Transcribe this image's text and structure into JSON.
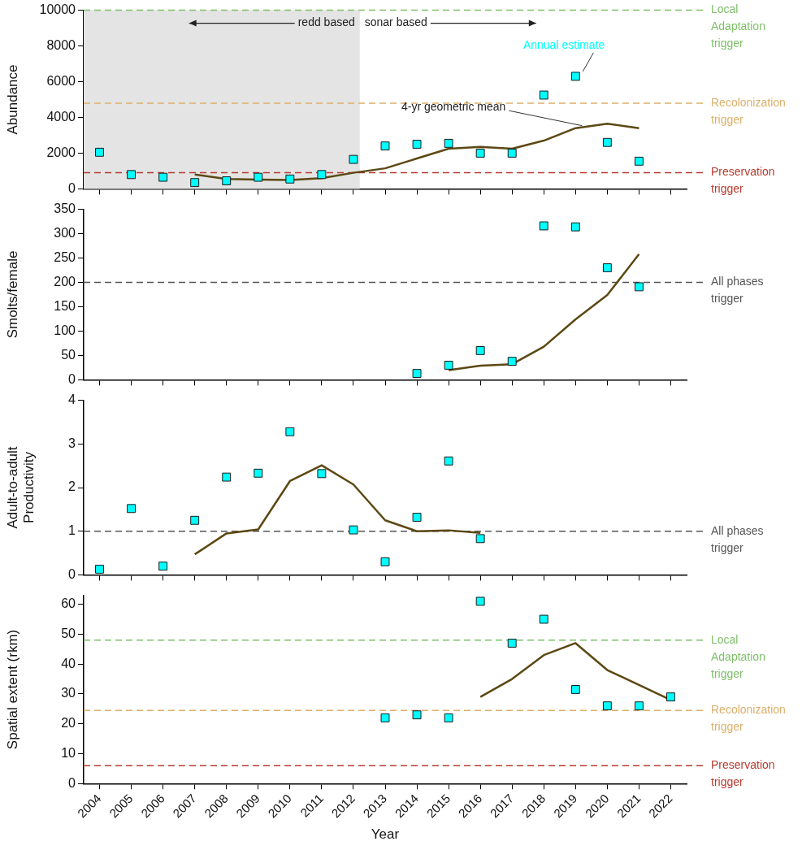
{
  "chart_data": [
    {
      "type": "scatter",
      "ylabel": "Abundance",
      "categories": [
        "2004",
        "2005",
        "2006",
        "2007",
        "2008",
        "2009",
        "2010",
        "2011",
        "2012",
        "2013",
        "2014",
        "2015",
        "2016",
        "2017",
        "2018",
        "2019",
        "2020",
        "2021",
        "2022"
      ],
      "series": [
        {
          "name": "Annual estimate",
          "marker": "square",
          "color": "#00ffff",
          "values": [
            2050,
            800,
            650,
            350,
            450,
            650,
            550,
            800,
            1650,
            2400,
            2500,
            2550,
            2000,
            2000,
            5250,
            6300,
            2600,
            1550,
            null
          ]
        },
        {
          "name": "4-yr geometric mean",
          "type": "line",
          "marker": "none",
          "color": "#5c4813",
          "values": [
            null,
            null,
            null,
            800,
            550,
            520,
            500,
            600,
            900,
            1150,
            1700,
            2250,
            2350,
            2250,
            2700,
            3400,
            3650,
            3400,
            null
          ]
        }
      ],
      "ylim": [
        0,
        10000
      ],
      "yticks": [
        0,
        2000,
        4000,
        6000,
        8000,
        10000
      ],
      "tick_labels": "y",
      "ref_lines": [
        {
          "axis": "y",
          "value": 10000,
          "label": "Local Adaptation trigger",
          "color": "#7fbf6a",
          "line_style": "dashed"
        },
        {
          "axis": "y",
          "value": 4800,
          "label": "Recolonization trigger",
          "color": "#dcb06a",
          "line_style": "dashed"
        },
        {
          "axis": "y",
          "value": 900,
          "label": "Preservation trigger",
          "color": "#b83a2e",
          "line_style": "dashed"
        }
      ],
      "bands": [
        {
          "axis": "x",
          "from": "2004",
          "to": "2012",
          "color": "#e4e4e4"
        }
      ],
      "annotations": [
        "redd based",
        "sonar based"
      ]
    },
    {
      "type": "scatter",
      "ylabel": "Smolts/female",
      "categories": [
        "2004",
        "2005",
        "2006",
        "2007",
        "2008",
        "2009",
        "2010",
        "2011",
        "2012",
        "2013",
        "2014",
        "2015",
        "2016",
        "2017",
        "2018",
        "2019",
        "2020",
        "2021",
        "2022"
      ],
      "series": [
        {
          "marker": "square",
          "color": "#00ffff",
          "values": [
            null,
            null,
            null,
            null,
            null,
            null,
            null,
            null,
            null,
            null,
            13,
            30,
            60,
            38,
            316,
            314,
            230,
            191,
            null
          ]
        },
        {
          "type": "line",
          "marker": "none",
          "color": "#5c4813",
          "values": [
            null,
            null,
            null,
            null,
            null,
            null,
            null,
            null,
            null,
            null,
            null,
            20,
            29,
            32,
            68,
            124,
            174,
            258,
            null
          ]
        }
      ],
      "ylim": [
        0,
        350
      ],
      "yticks": [
        0,
        50,
        100,
        150,
        200,
        250,
        300,
        350
      ],
      "tick_labels": "y",
      "ref_lines": [
        {
          "axis": "y",
          "value": 200,
          "label": "All phases trigger",
          "color": "#555555",
          "line_style": "dashed"
        }
      ]
    },
    {
      "type": "scatter",
      "ylabel": "Adult-to-adult Productivity",
      "categories": [
        "2004",
        "2005",
        "2006",
        "2007",
        "2008",
        "2009",
        "2010",
        "2011",
        "2012",
        "2013",
        "2014",
        "2015",
        "2016",
        "2017",
        "2018",
        "2019",
        "2020",
        "2021",
        "2022"
      ],
      "series": [
        {
          "marker": "square",
          "color": "#00ffff",
          "values": [
            0.13,
            1.52,
            0.2,
            1.25,
            2.24,
            2.33,
            3.28,
            2.32,
            1.03,
            0.3,
            1.32,
            2.61,
            0.83,
            null,
            null,
            null,
            null,
            null,
            null
          ]
        },
        {
          "type": "line",
          "marker": "none",
          "color": "#5c4813",
          "values": [
            null,
            null,
            null,
            0.47,
            0.95,
            1.04,
            2.15,
            2.51,
            2.07,
            1.25,
            1.0,
            1.02,
            0.96,
            null,
            null,
            null,
            null,
            null,
            null
          ]
        }
      ],
      "ylim": [
        0,
        4
      ],
      "yticks": [
        0,
        1,
        2,
        3,
        4
      ],
      "tick_labels": "y",
      "ref_lines": [
        {
          "axis": "y",
          "value": 1,
          "label": "All phases trigger",
          "color": "#555555",
          "line_style": "dashed"
        }
      ]
    },
    {
      "type": "scatter",
      "xlabel": "Year",
      "ylabel": "Spatial extent (rkm)",
      "categories": [
        "2004",
        "2005",
        "2006",
        "2007",
        "2008",
        "2009",
        "2010",
        "2011",
        "2012",
        "2013",
        "2014",
        "2015",
        "2016",
        "2017",
        "2018",
        "2019",
        "2020",
        "2021",
        "2022"
      ],
      "series": [
        {
          "marker": "square",
          "color": "#00ffff",
          "values": [
            null,
            null,
            null,
            null,
            null,
            null,
            null,
            null,
            null,
            22,
            23,
            22,
            61,
            47,
            55,
            31.5,
            26,
            26,
            29
          ]
        },
        {
          "type": "line",
          "marker": "none",
          "color": "#5c4813",
          "values": [
            null,
            null,
            null,
            null,
            null,
            null,
            null,
            null,
            null,
            null,
            null,
            null,
            29,
            35,
            43,
            47,
            38,
            33,
            28
          ]
        }
      ],
      "ylim": [
        0,
        63
      ],
      "yticks": [
        0,
        10,
        20,
        30,
        40,
        50,
        60
      ],
      "ref_lines": [
        {
          "axis": "y",
          "value": 48,
          "label": "Local Adaptation trigger",
          "color": "#7fbf6a",
          "line_style": "dashed"
        },
        {
          "axis": "y",
          "value": 24.5,
          "label": "Recolonization trigger",
          "color": "#dcb06a",
          "line_style": "dashed"
        },
        {
          "axis": "y",
          "value": 6,
          "label": "Preservation trigger",
          "color": "#b83a2e",
          "line_style": "dashed"
        }
      ]
    }
  ]
}
